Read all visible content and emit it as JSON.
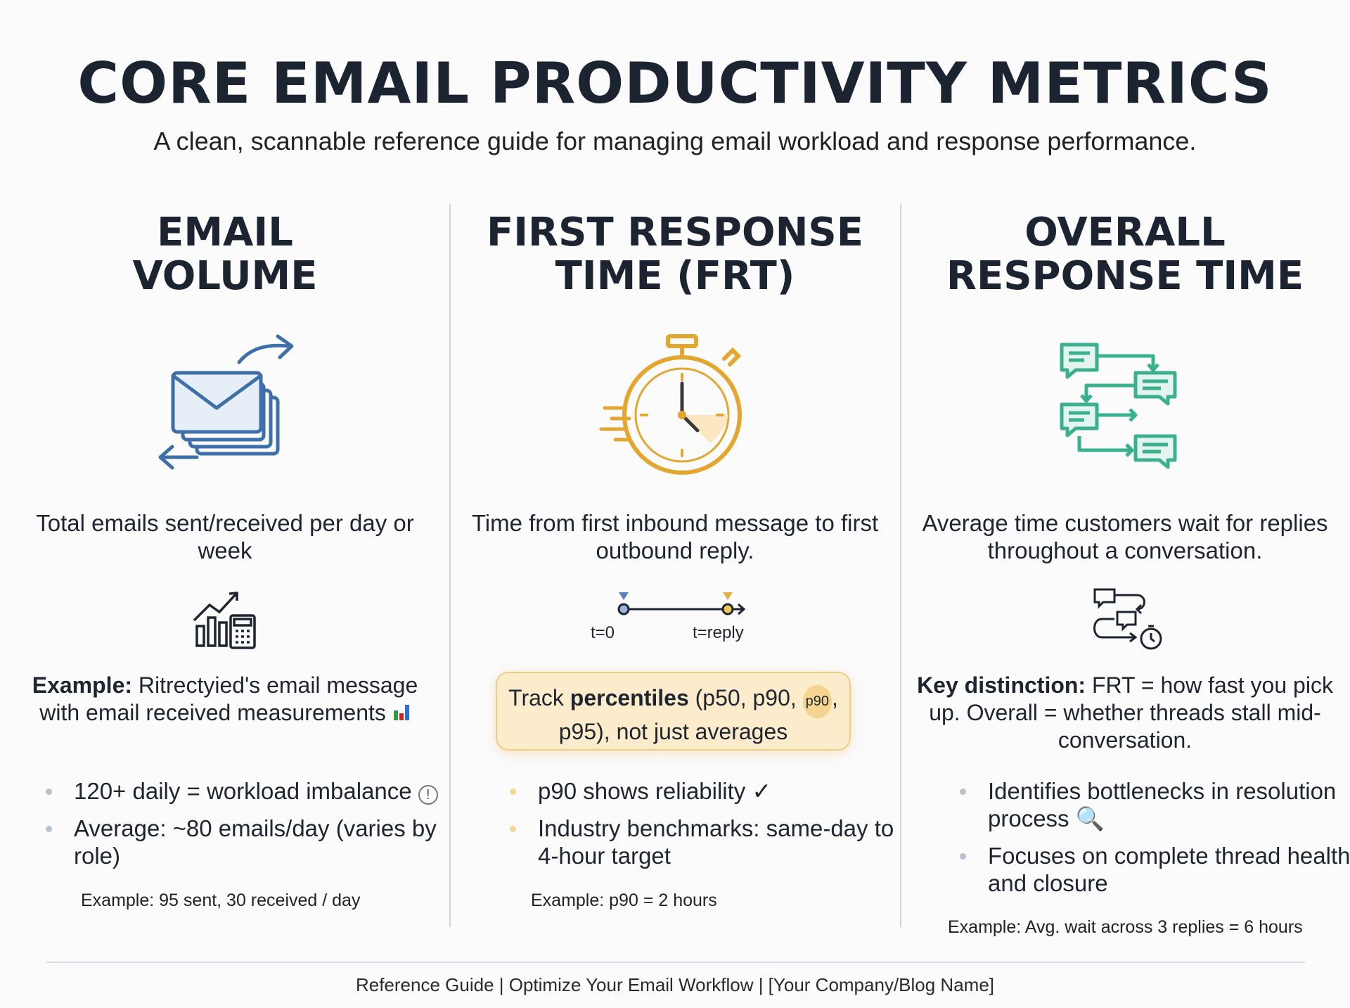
{
  "header": {
    "title": "CORE EMAIL PRODUCTIVITY METRICS",
    "subtitle": "A clean, scannable reference guide for managing email workload and response performance."
  },
  "columns": [
    {
      "title_line1": "EMAIL",
      "title_line2": "VOLUME",
      "icon": "envelope-stack-arrows-icon",
      "accent": "#3f6fa8",
      "description": "Total emails sent/received per day or week",
      "small_icon": "chart-calculator-icon",
      "example_label": "Example:",
      "example_text": "Ritrectyied's email message with email received measurements",
      "example_icon": "bar-chart-emoji-icon",
      "bullets": [
        "120+ daily = workload imbalance",
        "Average: ~80 emails/day (varies by role)"
      ],
      "bullet_icons": [
        "warning-circle-icon",
        ""
      ],
      "note": "Example: 95 sent, 30 received / day"
    },
    {
      "title_line1": "FIRST RESPONSE",
      "title_line2": "TIME (FRT)",
      "icon": "stopwatch-icon",
      "accent": "#e3a62f",
      "description": "Time from first inbound message to first outbound reply.",
      "timeline": {
        "start": "t=0",
        "end": "t=reply"
      },
      "callout": {
        "pre": "Track ",
        "bold": "percentiles",
        "post": " (p50, p90, ",
        "badge": "p90",
        "post2": ", p95), not just averages"
      },
      "bullets": [
        "p90 shows reliability ✓",
        "Industry benchmarks: same-day to 4-hour target"
      ],
      "note": "Example: p90 = 2 hours"
    },
    {
      "title_line1": "OVERALL",
      "title_line2": "RESPONSE TIME",
      "icon": "conversation-flow-icon",
      "accent": "#3bb08f",
      "description": "Average time customers wait for replies throughout a conversation.",
      "small_icon": "chat-cycle-timer-icon",
      "example_label": "Key distinction:",
      "example_text": "FRT = how fast you pick up. Overall = whether threads stall mid-conversation.",
      "bullets": [
        "Identifies bottlenecks in resolution process 🔍",
        "Focuses on complete thread health and closure"
      ],
      "note": "Example: Avg. wait across 3 replies = 6 hours"
    }
  ],
  "footer": {
    "text": "Reference Guide | Optimize Your Email Workflow | [Your Company/Blog Name]"
  }
}
